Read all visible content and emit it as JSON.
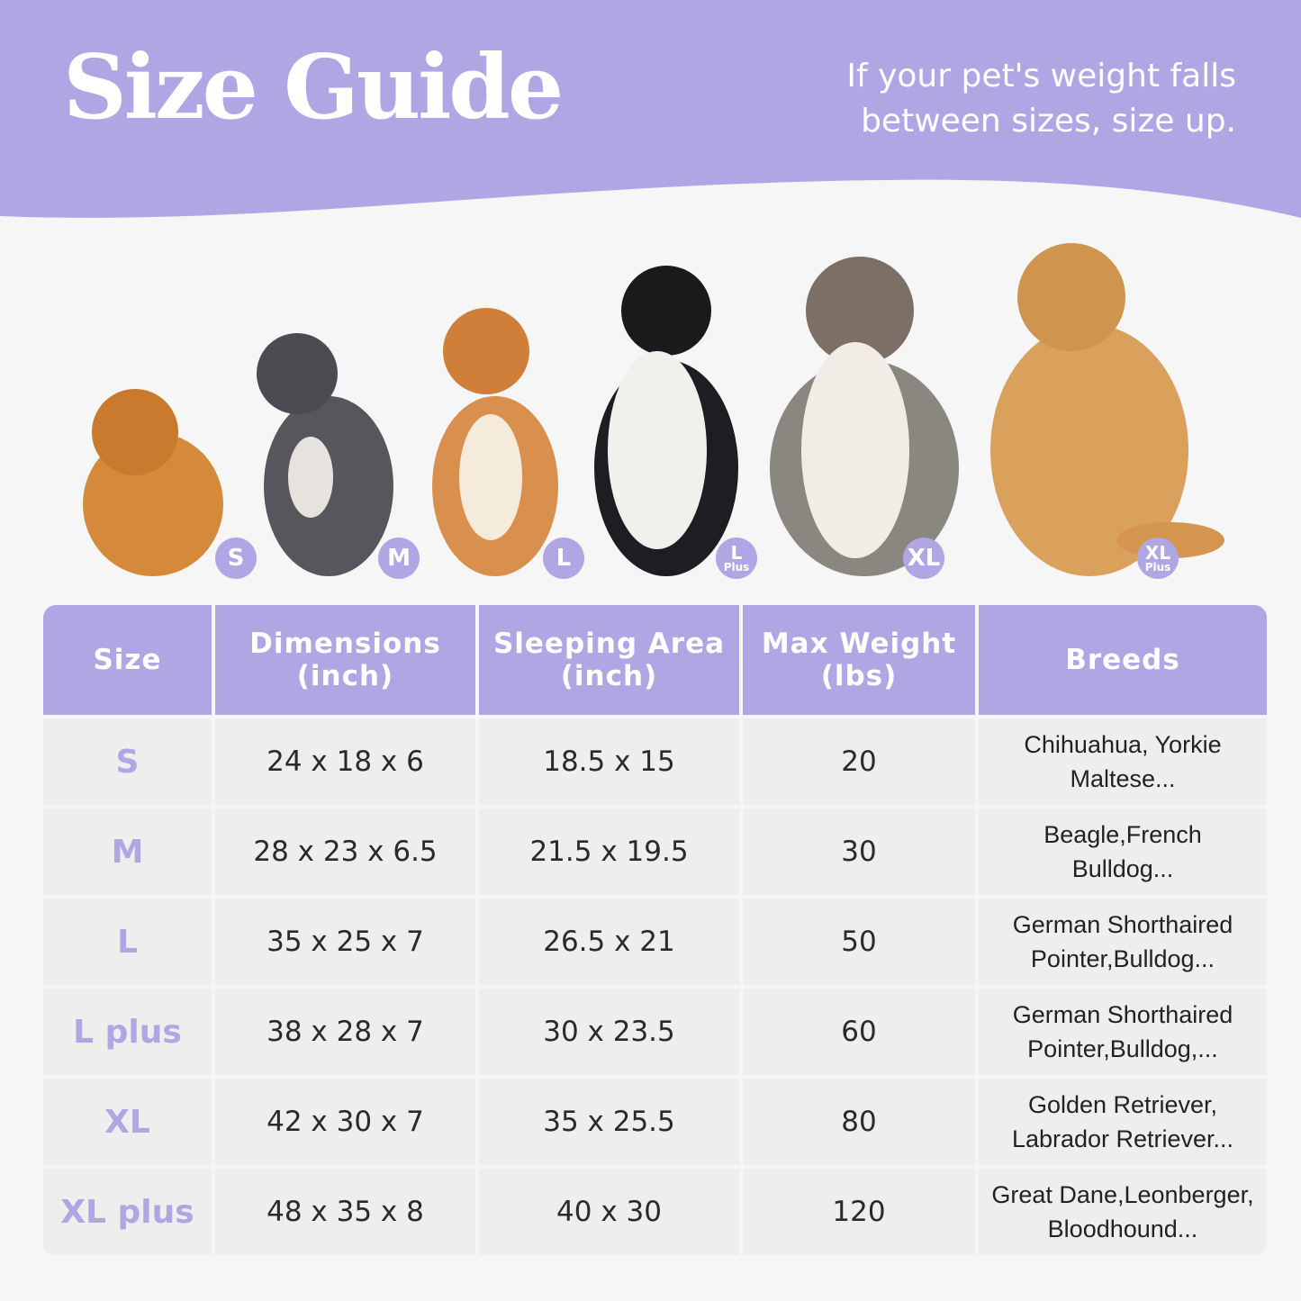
{
  "header": {
    "title": "Size Guide",
    "tip_line1": "If your pet's weight falls",
    "tip_line2": "between sizes, size up."
  },
  "colors": {
    "accent": "#b0a6e4",
    "cell": "#eeefed",
    "background": "#f6f6f6"
  },
  "dog_badges": [
    {
      "line1": "S",
      "line2": ""
    },
    {
      "line1": "M",
      "line2": ""
    },
    {
      "line1": "L",
      "line2": ""
    },
    {
      "line1": "L",
      "line2": "Plus"
    },
    {
      "line1": "XL",
      "line2": ""
    },
    {
      "line1": "XL",
      "line2": "Plus"
    }
  ],
  "table": {
    "headers": [
      {
        "line1": "Size",
        "line2": ""
      },
      {
        "line1": "Dimensions",
        "line2": "(inch)"
      },
      {
        "line1": "Sleeping Area",
        "line2": "(inch)"
      },
      {
        "line1": "Max Weight",
        "line2": "(lbs)"
      },
      {
        "line1": "Breeds",
        "line2": ""
      }
    ],
    "rows": [
      {
        "size": "S",
        "dimensions": "24 x 18 x 6",
        "sleeping": "18.5 x 15",
        "weight": "20",
        "breeds1": "Chihuahua, Yorkie",
        "breeds2": "Maltese..."
      },
      {
        "size": "M",
        "dimensions": "28 x 23 x 6.5",
        "sleeping": "21.5 x 19.5",
        "weight": "30",
        "breeds1": "Beagle,French",
        "breeds2": "Bulldog..."
      },
      {
        "size": "L",
        "dimensions": "35 x 25 x 7",
        "sleeping": "26.5 x 21",
        "weight": "50",
        "breeds1": "German Shorthaired",
        "breeds2": "Pointer,Bulldog..."
      },
      {
        "size": "L plus",
        "dimensions": "38 x 28 x 7",
        "sleeping": "30 x 23.5",
        "weight": "60",
        "breeds1": "German Shorthaired",
        "breeds2": "Pointer,Bulldog,..."
      },
      {
        "size": "XL",
        "dimensions": "42 x 30 x 7",
        "sleeping": "35 x 25.5",
        "weight": "80",
        "breeds1": "Golden Retriever,",
        "breeds2": "Labrador Retriever..."
      },
      {
        "size": "XL plus",
        "dimensions": "48 x 35 x 8",
        "sleeping": "40 x 30",
        "weight": "120",
        "breeds1": "Great Dane,Leonberger,",
        "breeds2": "Bloodhound..."
      }
    ]
  }
}
